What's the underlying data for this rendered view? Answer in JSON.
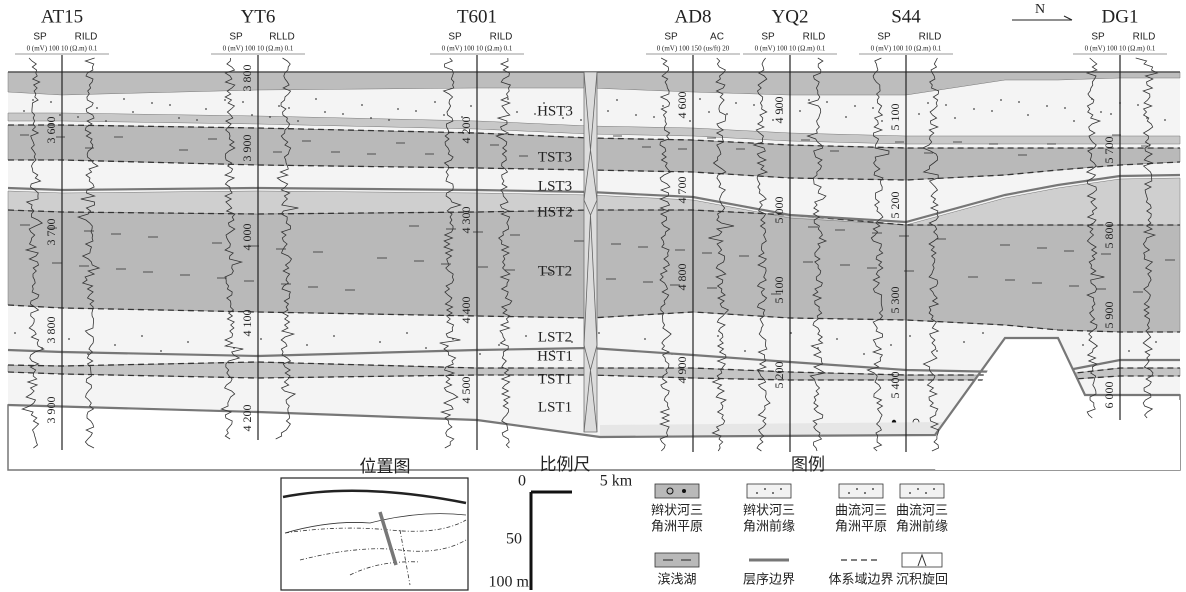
{
  "wells": [
    {
      "name": "AT15",
      "logs": [
        "SP",
        "RILD"
      ],
      "scale": "0 (mV) 100 10 (Ω.m) 0.1",
      "depths": [
        "3 600",
        "3 700",
        "3 800",
        "3 900"
      ]
    },
    {
      "name": "YT6",
      "logs": [
        "SP",
        "RLLD"
      ],
      "scale": "0 (mV) 100 10 (Ω.m) 0.1",
      "depths": [
        "3 800",
        "3 900",
        "4 000",
        "4 100",
        "4 200"
      ]
    },
    {
      "name": "T601",
      "logs": [
        "SP",
        "RILD"
      ],
      "scale": "0 (mV) 100 10 (Ω.m) 0.1",
      "depths": [
        "4 200",
        "4 300",
        "4 400",
        "4 500"
      ]
    },
    {
      "name": "AD8",
      "logs": [
        "SP",
        "AC"
      ],
      "scale": "0 (mV) 100 150 (us/ft) 20",
      "depths": [
        "4 600",
        "4 700",
        "4 800",
        "4 900"
      ]
    },
    {
      "name": "YQ2",
      "logs": [
        "SP",
        "RILD"
      ],
      "scale": "0 (mV) 100 10 (Ω.m) 0.1",
      "depths": [
        "4 900",
        "5 000",
        "5 100",
        "5 200"
      ]
    },
    {
      "name": "S44",
      "logs": [
        "SP",
        "RILD"
      ],
      "scale": "0 (mV) 100 10 (Ω.m) 0.1",
      "depths": [
        "5 100",
        "5 200",
        "5 300",
        "5 400"
      ]
    },
    {
      "name": "DG1",
      "logs": [
        "SP",
        "RILD"
      ],
      "scale": "0 (mV) 100 10 (Ω.m) 0.1",
      "depths": [
        "5 700",
        "5 800",
        "5 900",
        "6 000"
      ]
    }
  ],
  "north": "N",
  "tracts": [
    "HST3",
    "TST3",
    "LST3",
    "HST2",
    "TST2",
    "LST2",
    "HST1",
    "TST1",
    "LST1"
  ],
  "location_map": {
    "title": "位置图"
  },
  "scale_bar": {
    "title": "比例尺",
    "labels": [
      "0",
      "5 km",
      "50",
      "100 m"
    ]
  },
  "legend": {
    "title": "图例",
    "items": [
      {
        "lines": [
          "辫状河三",
          "角洲平原"
        ]
      },
      {
        "lines": [
          "辫状河三",
          "角洲前缘"
        ]
      },
      {
        "lines": [
          "曲流河三",
          "角洲平原"
        ]
      },
      {
        "lines": [
          "曲流河三",
          "角洲前缘"
        ]
      },
      {
        "lines": [
          "滨浅湖"
        ]
      },
      {
        "lines": [
          "层序边界"
        ]
      },
      {
        "lines": [
          "体系域边界"
        ]
      },
      {
        "lines": [
          "沉积旋回"
        ]
      }
    ]
  }
}
